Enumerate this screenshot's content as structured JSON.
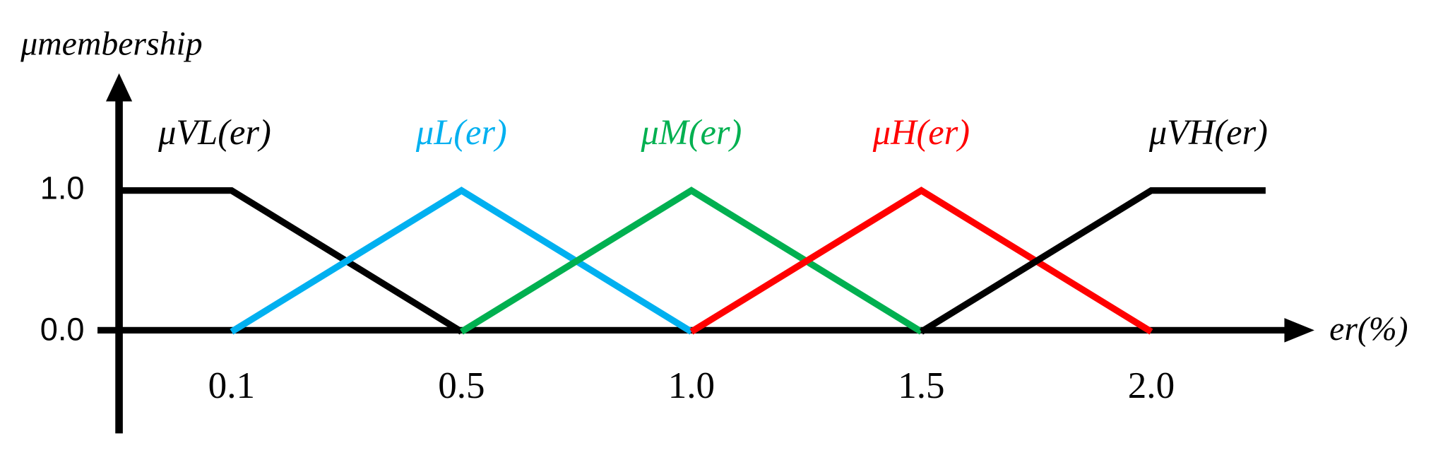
{
  "chart_data": {
    "type": "line",
    "y_axis_label": "μmembership",
    "x_axis_label": "er(%)",
    "categories": [
      null,
      "0.1",
      "0.5",
      "1.0",
      "1.5",
      "2.0",
      null
    ],
    "ylim": [
      -0.72,
      1.83
    ],
    "yticks": [
      {
        "value": 0,
        "label": "0.0"
      },
      {
        "value": 1,
        "label": "1.0"
      }
    ],
    "grid": false,
    "series": [
      {
        "name": "μVL(er)",
        "color": "#000000",
        "values": [
          1,
          1,
          0,
          null,
          null,
          null,
          null
        ]
      },
      {
        "name": "μL(er)",
        "color": "#00b0f0",
        "values": [
          null,
          0,
          1,
          0,
          null,
          null,
          null
        ]
      },
      {
        "name": "μM(er)",
        "color": "#00b050",
        "values": [
          null,
          null,
          0,
          1,
          0,
          null,
          null
        ]
      },
      {
        "name": "μH(er)",
        "color": "#ff0000",
        "values": [
          null,
          null,
          null,
          0,
          1,
          0,
          null
        ]
      },
      {
        "name": "μVH(er)",
        "color": "#000000",
        "values": [
          null,
          null,
          null,
          null,
          0,
          1,
          1
        ]
      }
    ]
  }
}
